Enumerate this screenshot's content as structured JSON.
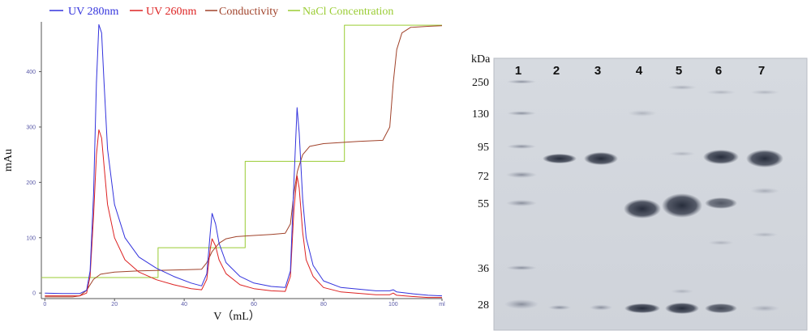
{
  "chart_data": {
    "type": "line",
    "xlabel": "V（mL）",
    "ylabel": "mAu",
    "xlim": [
      -1,
      114
    ],
    "ylim": [
      -10,
      490
    ],
    "x_ticks": [
      "0",
      "20",
      "40",
      "60",
      "80",
      "100",
      "ml"
    ],
    "x_tick_values": [
      0,
      20,
      40,
      60,
      80,
      100,
      114
    ],
    "y_ticks": [
      0,
      100,
      200,
      300,
      400
    ],
    "legend_position": "top",
    "grid": false,
    "series": [
      {
        "name": "UV 280nm",
        "color": "#3333dd",
        "points": [
          [
            0,
            0
          ],
          [
            5,
            -1
          ],
          [
            10,
            -1
          ],
          [
            12,
            5
          ],
          [
            13,
            40
          ],
          [
            14,
            180
          ],
          [
            14.8,
            380
          ],
          [
            15.5,
            485
          ],
          [
            16.3,
            470
          ],
          [
            17,
            380
          ],
          [
            18,
            260
          ],
          [
            20,
            160
          ],
          [
            23,
            100
          ],
          [
            27,
            65
          ],
          [
            32,
            45
          ],
          [
            37,
            30
          ],
          [
            42,
            18
          ],
          [
            45,
            13
          ],
          [
            46.5,
            35
          ],
          [
            47.5,
            110
          ],
          [
            48,
            144
          ],
          [
            49,
            125
          ],
          [
            50,
            90
          ],
          [
            52,
            55
          ],
          [
            56,
            30
          ],
          [
            60,
            18
          ],
          [
            65,
            12
          ],
          [
            69,
            10
          ],
          [
            70.5,
            40
          ],
          [
            71.5,
            200
          ],
          [
            72.4,
            335
          ],
          [
            73,
            290
          ],
          [
            74,
            170
          ],
          [
            75,
            100
          ],
          [
            77,
            50
          ],
          [
            80,
            22
          ],
          [
            85,
            10
          ],
          [
            95,
            4
          ],
          [
            99,
            4
          ],
          [
            100,
            6
          ],
          [
            101,
            2
          ],
          [
            105,
            -1
          ],
          [
            110,
            -4
          ],
          [
            114,
            -5
          ]
        ]
      },
      {
        "name": "UV 260nm",
        "color": "#dd2222",
        "points": [
          [
            0,
            -5
          ],
          [
            10,
            -5
          ],
          [
            12,
            0
          ],
          [
            13,
            30
          ],
          [
            14,
            140
          ],
          [
            14.8,
            250
          ],
          [
            15.5,
            295
          ],
          [
            16.3,
            280
          ],
          [
            17,
            230
          ],
          [
            18,
            160
          ],
          [
            20,
            100
          ],
          [
            23,
            60
          ],
          [
            27,
            38
          ],
          [
            32,
            24
          ],
          [
            37,
            15
          ],
          [
            42,
            8
          ],
          [
            45,
            6
          ],
          [
            46.5,
            25
          ],
          [
            47.5,
            80
          ],
          [
            48,
            98
          ],
          [
            49,
            85
          ],
          [
            50,
            60
          ],
          [
            52,
            35
          ],
          [
            56,
            15
          ],
          [
            60,
            8
          ],
          [
            65,
            4
          ],
          [
            69,
            3
          ],
          [
            70.5,
            30
          ],
          [
            71.5,
            150
          ],
          [
            72.4,
            212
          ],
          [
            73,
            190
          ],
          [
            74,
            110
          ],
          [
            75,
            60
          ],
          [
            77,
            30
          ],
          [
            80,
            10
          ],
          [
            85,
            2
          ],
          [
            95,
            -3
          ],
          [
            99,
            -3
          ],
          [
            100,
            0
          ],
          [
            101,
            -4
          ],
          [
            105,
            -6
          ],
          [
            110,
            -8
          ],
          [
            114,
            -8
          ]
        ]
      },
      {
        "name": "Conductivity",
        "color": "#a0422a",
        "points": [
          [
            0,
            -7
          ],
          [
            8,
            -7
          ],
          [
            10,
            -5
          ],
          [
            12,
            5
          ],
          [
            14,
            25
          ],
          [
            16,
            34
          ],
          [
            20,
            38
          ],
          [
            27,
            40
          ],
          [
            33,
            41
          ],
          [
            40,
            42
          ],
          [
            45,
            43
          ],
          [
            46.5,
            55
          ],
          [
            48,
            75
          ],
          [
            50,
            90
          ],
          [
            52,
            98
          ],
          [
            55,
            102
          ],
          [
            60,
            104
          ],
          [
            65,
            106
          ],
          [
            69,
            108
          ],
          [
            70.5,
            125
          ],
          [
            71.5,
            180
          ],
          [
            72.5,
            220
          ],
          [
            74,
            250
          ],
          [
            76,
            265
          ],
          [
            80,
            270
          ],
          [
            85,
            272
          ],
          [
            90,
            274
          ],
          [
            97,
            276
          ],
          [
            99,
            300
          ],
          [
            100,
            380
          ],
          [
            101,
            440
          ],
          [
            102.5,
            470
          ],
          [
            105,
            480
          ],
          [
            110,
            482
          ],
          [
            114,
            483
          ]
        ]
      },
      {
        "name": "NaCl Concentration",
        "color": "#9acc33",
        "points": [
          [
            -1,
            28
          ],
          [
            32.5,
            28
          ],
          [
            32.5,
            82
          ],
          [
            57.5,
            82
          ],
          [
            57.5,
            238
          ],
          [
            86,
            238
          ],
          [
            86,
            484
          ],
          [
            114,
            484
          ]
        ]
      }
    ]
  },
  "gel": {
    "unit_label": "kDa",
    "mw_markers": [
      "250",
      "130",
      "95",
      "72",
      "55",
      "36",
      "28"
    ],
    "mw_marker_y": [
      101,
      140,
      181,
      217,
      251,
      331,
      376
    ],
    "lanes": [
      "1",
      "2",
      "3",
      "4",
      "5",
      "6",
      "7"
    ]
  }
}
